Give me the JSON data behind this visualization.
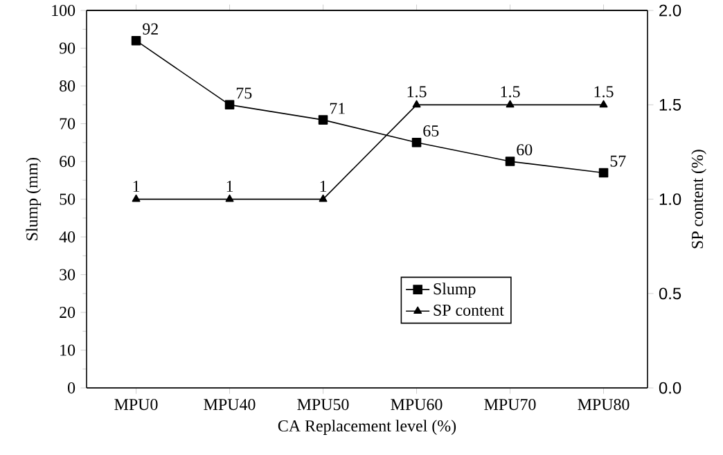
{
  "chart_data": {
    "type": "line",
    "xlabel": "CA Replacement level (%)",
    "ylabel": "Slump (mm)",
    "y2label": "SP content (%)",
    "categories": [
      "MPU0",
      "MPU40",
      "MPU50",
      "MPU60",
      "MPU70",
      "MPU80"
    ],
    "series": [
      {
        "name": "Slump",
        "color": "#000000",
        "marker": "square",
        "values": [
          92,
          75,
          71,
          65,
          60,
          57
        ]
      },
      {
        "name": "SP content",
        "color": "#000000",
        "marker": "triangle",
        "axis": "y2",
        "values": [
          1,
          1,
          1,
          1.5,
          1.5,
          1.5
        ]
      }
    ],
    "ylim": [
      0,
      100
    ],
    "yticks": [
      0,
      10,
      20,
      30,
      40,
      50,
      60,
      70,
      80,
      90,
      100
    ],
    "y2lim": [
      0,
      2
    ],
    "y2ticks": [
      {
        "value": 0,
        "label": "0.0"
      },
      {
        "value": 0.5,
        "label": "0.5"
      },
      {
        "value": 1,
        "label": "1.0"
      },
      {
        "value": 1.5,
        "label": "1.5"
      },
      {
        "value": 2,
        "label": "2.0"
      }
    ],
    "data_labels": true,
    "legend": "bottom right"
  }
}
